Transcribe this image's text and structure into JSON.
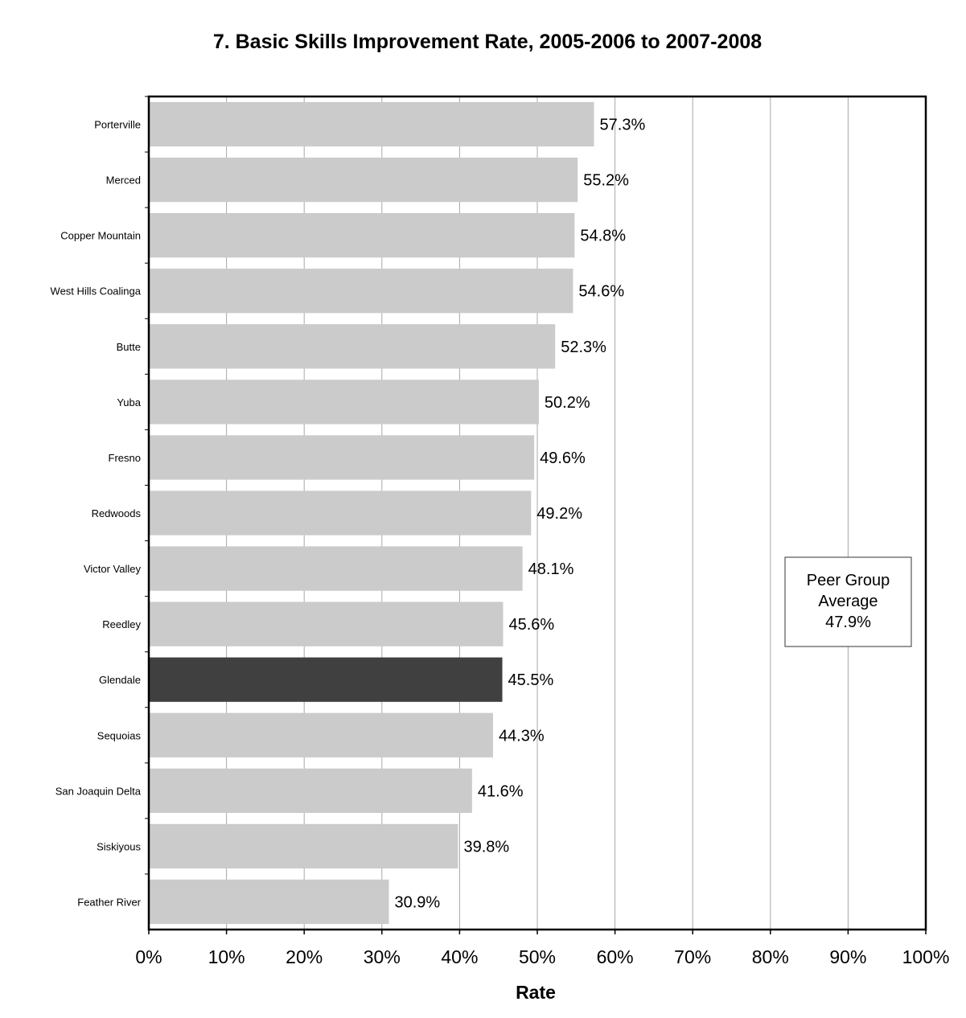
{
  "chart_data": {
    "type": "bar",
    "orientation": "horizontal",
    "title": "7. Basic Skills Improvement Rate, 2005-2006 to 2007-2008",
    "xlabel": "Rate",
    "ylabel": "",
    "xlim": [
      0,
      100
    ],
    "x_ticks": [
      "0%",
      "10%",
      "20%",
      "30%",
      "40%",
      "50%",
      "60%",
      "70%",
      "80%",
      "90%",
      "100%"
    ],
    "grid": true,
    "categories": [
      "Porterville",
      "Merced",
      "Copper Mountain",
      "West Hills Coalinga",
      "Butte",
      "Yuba",
      "Fresno",
      "Redwoods",
      "Victor Valley",
      "Reedley",
      "Glendale",
      "Sequoias",
      "San Joaquin Delta",
      "Siskiyous",
      "Feather River"
    ],
    "values": [
      57.3,
      55.2,
      54.8,
      54.6,
      52.3,
      50.2,
      49.6,
      49.2,
      48.1,
      45.6,
      45.5,
      44.3,
      41.6,
      39.8,
      30.9
    ],
    "value_labels": [
      "57.3%",
      "55.2%",
      "54.8%",
      "54.6%",
      "52.3%",
      "50.2%",
      "49.6%",
      "49.2%",
      "48.1%",
      "45.6%",
      "45.5%",
      "44.3%",
      "41.6%",
      "39.8%",
      "30.9%"
    ],
    "highlight": "Glendale",
    "colors": {
      "bar": "#cbcbcb",
      "highlight_bar": "#404040",
      "grid": "#a8a8a8",
      "frame": "#000000"
    },
    "annotation": {
      "lines": [
        "Peer Group",
        "Average",
        "47.9%"
      ]
    }
  }
}
